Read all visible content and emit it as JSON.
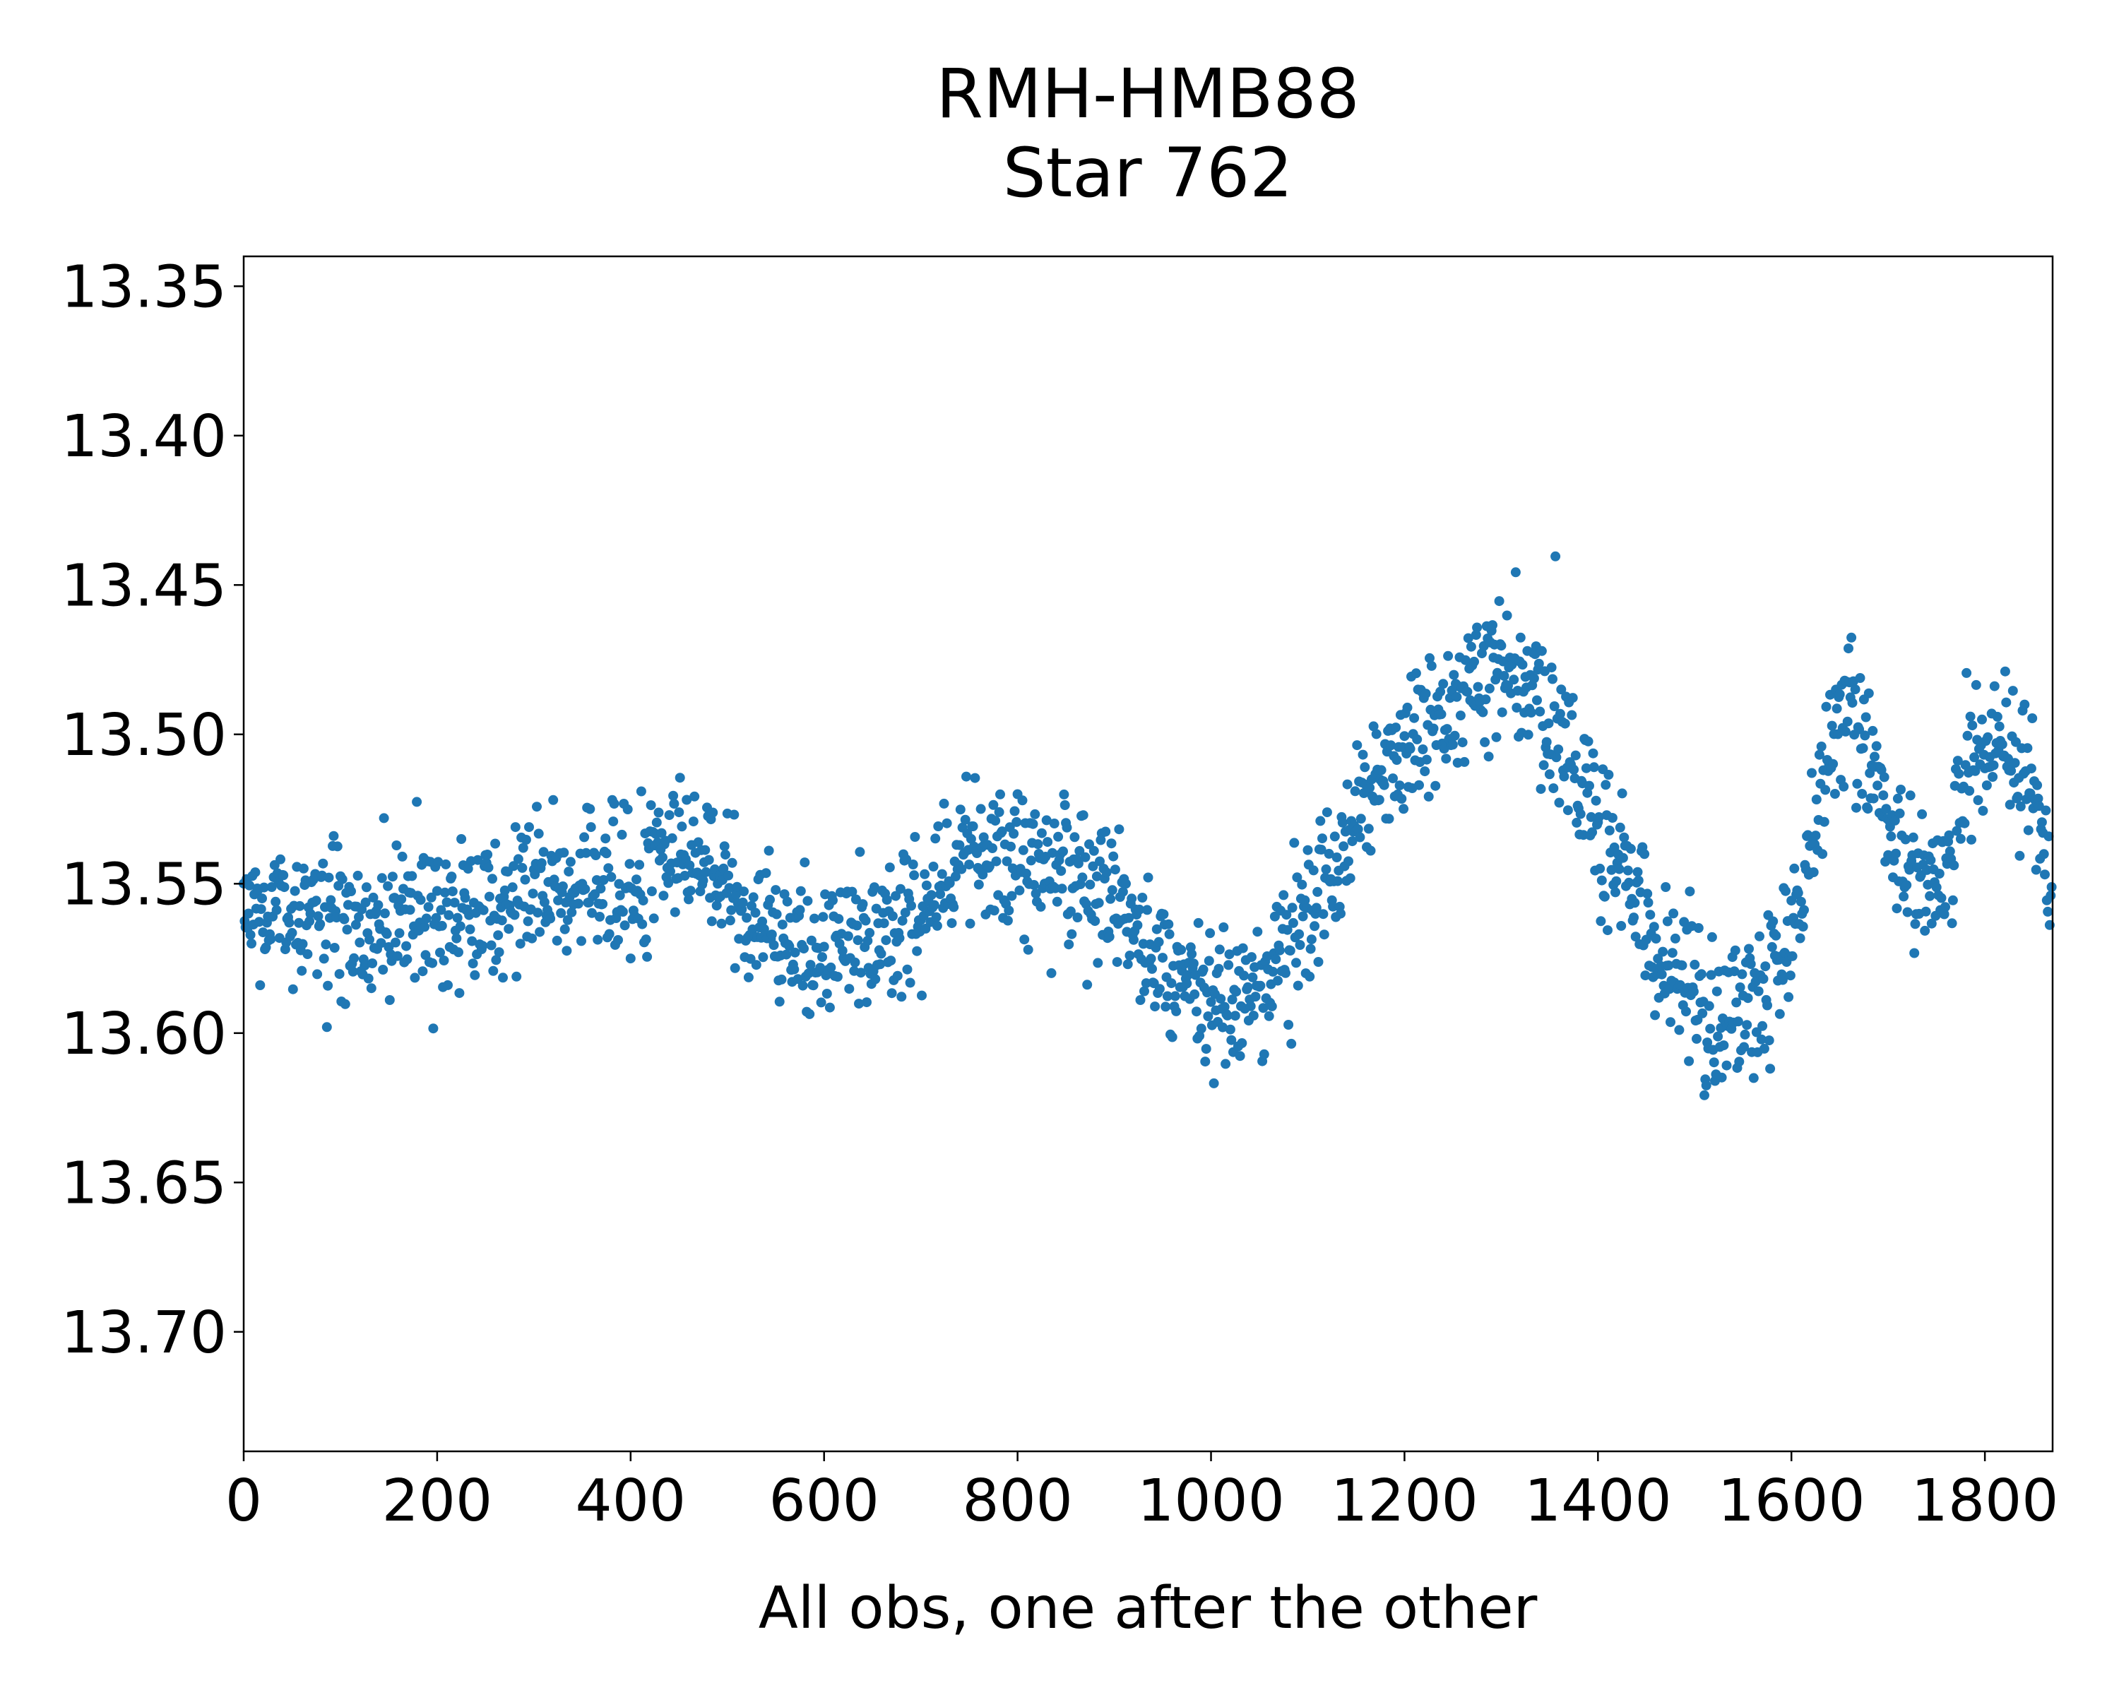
{
  "chart_data": {
    "type": "scatter",
    "title": [
      "RMH-HMB88",
      "Star 762"
    ],
    "xlabel": "All obs, one after the other",
    "ylabel": "",
    "xlim": [
      0,
      1870
    ],
    "ylim": [
      13.74,
      13.34
    ],
    "y_inverted": true,
    "grid": false,
    "x_ticks": [
      0,
      200,
      400,
      600,
      800,
      1000,
      1200,
      1400,
      1600,
      1800
    ],
    "x_tick_labels": [
      "0",
      "200",
      "400",
      "600",
      "800",
      "1000",
      "1200",
      "1400",
      "1600",
      "1800"
    ],
    "y_ticks": [
      13.35,
      13.4,
      13.45,
      13.5,
      13.55,
      13.6,
      13.65,
      13.7
    ],
    "y_tick_labels": [
      "13.35",
      "13.40",
      "13.45",
      "13.50",
      "13.55",
      "13.60",
      "13.65",
      "13.70"
    ],
    "series": [
      {
        "color": "#1f77b4",
        "n_points": 1870,
        "trend": [
          [
            0,
            13.557
          ],
          [
            100,
            13.563
          ],
          [
            200,
            13.562
          ],
          [
            300,
            13.553
          ],
          [
            350,
            13.55
          ],
          [
            400,
            13.548
          ],
          [
            450,
            13.54
          ],
          [
            480,
            13.542
          ],
          [
            520,
            13.56
          ],
          [
            580,
            13.572
          ],
          [
            640,
            13.57
          ],
          [
            700,
            13.558
          ],
          [
            760,
            13.54
          ],
          [
            800,
            13.541
          ],
          [
            860,
            13.55
          ],
          [
            900,
            13.556
          ],
          [
            950,
            13.575
          ],
          [
            1000,
            13.59
          ],
          [
            1020,
            13.59
          ],
          [
            1060,
            13.58
          ],
          [
            1100,
            13.56
          ],
          [
            1150,
            13.53
          ],
          [
            1200,
            13.505
          ],
          [
            1250,
            13.49
          ],
          [
            1300,
            13.47
          ],
          [
            1330,
            13.485
          ],
          [
            1360,
            13.5
          ],
          [
            1400,
            13.53
          ],
          [
            1450,
            13.565
          ],
          [
            1500,
            13.59
          ],
          [
            1540,
            13.595
          ],
          [
            1580,
            13.585
          ],
          [
            1620,
            13.545
          ],
          [
            1640,
            13.5
          ],
          [
            1660,
            13.49
          ],
          [
            1680,
            13.51
          ],
          [
            1700,
            13.53
          ],
          [
            1720,
            13.545
          ],
          [
            1760,
            13.54
          ],
          [
            1790,
            13.505
          ],
          [
            1820,
            13.505
          ],
          [
            1850,
            13.52
          ],
          [
            1870,
            13.555
          ]
        ],
        "scatter_sd": 0.012
      }
    ]
  }
}
